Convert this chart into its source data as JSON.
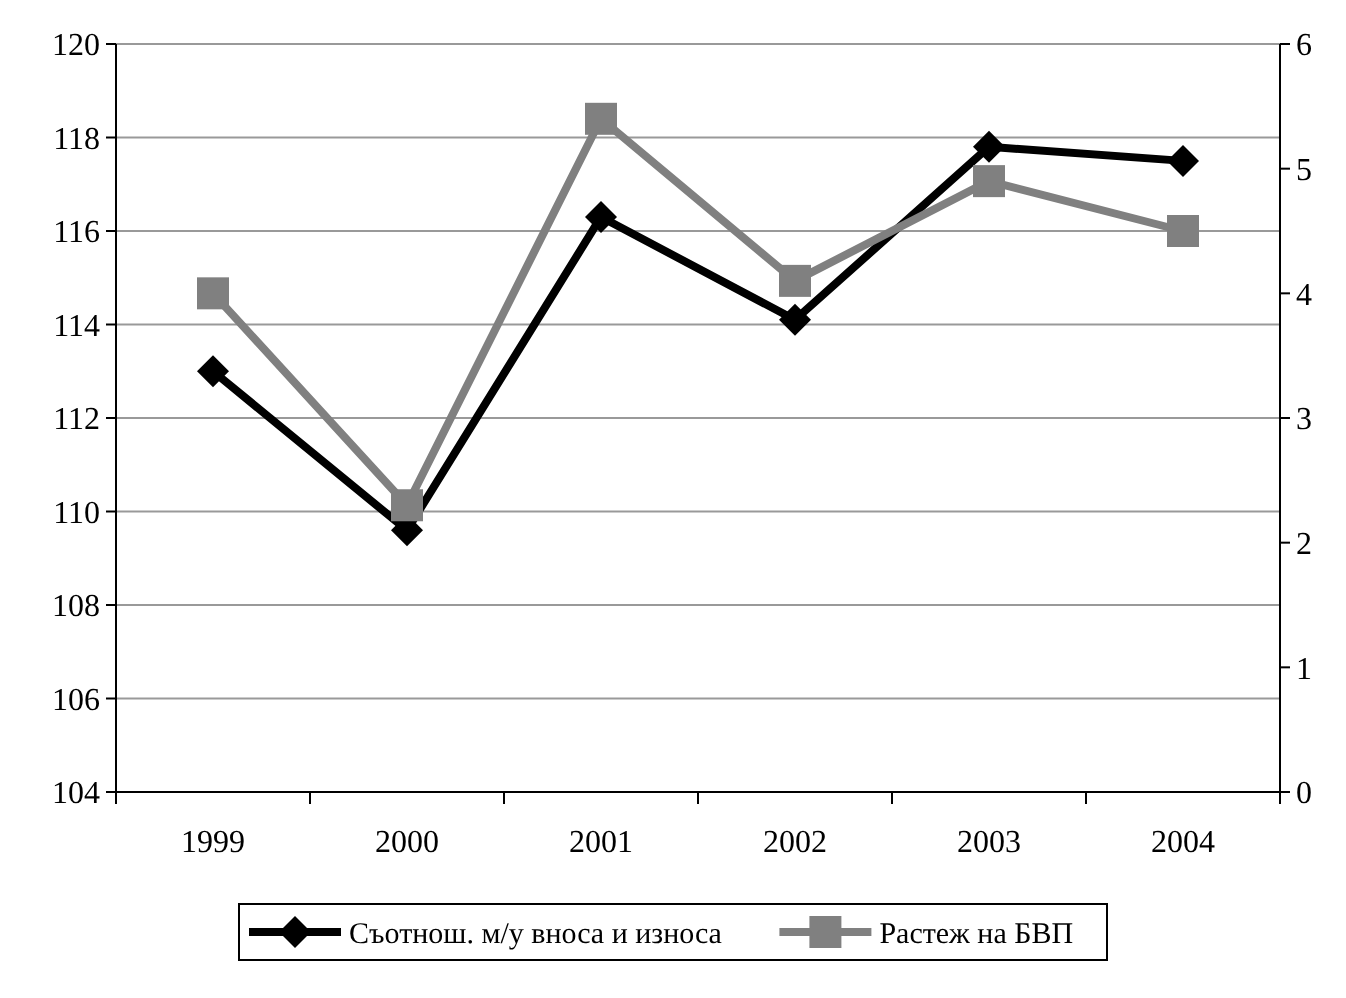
{
  "chart_data": {
    "type": "line",
    "categories": [
      "1999",
      "2000",
      "2001",
      "2002",
      "2003",
      "2004"
    ],
    "series": [
      {
        "name": "Съотнош. м/у вноса и износа",
        "color": "#000000",
        "marker": "diamond",
        "values": [
          113.0,
          109.6,
          116.3,
          114.1,
          117.8,
          117.5
        ]
      },
      {
        "name": "Растеж на БВП",
        "color": "#808080",
        "marker": "square",
        "axis": "y2",
        "values": [
          4.0,
          2.3,
          5.4,
          4.1,
          4.9,
          4.5
        ]
      }
    ],
    "ylim": [
      104,
      120
    ],
    "yticks": [
      104,
      106,
      108,
      110,
      112,
      114,
      116,
      118,
      120
    ],
    "y2lim": [
      0,
      6
    ],
    "y2ticks": [
      0,
      1,
      2,
      3,
      4,
      5,
      6
    ],
    "grid": "y",
    "legend": "bottom"
  }
}
